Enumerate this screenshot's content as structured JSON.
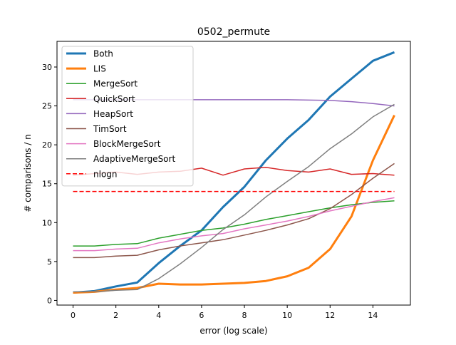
{
  "chart_data": {
    "type": "line",
    "title": "0502_permute",
    "xlabel": "error (log scale)",
    "ylabel": "# comparisons / n",
    "xlim": [
      -0.75,
      15.75
    ],
    "ylim": [
      -0.6,
      33.3
    ],
    "x_ticks": [
      0,
      2,
      4,
      6,
      8,
      10,
      12,
      14
    ],
    "y_ticks": [
      0,
      5,
      10,
      15,
      20,
      25,
      30
    ],
    "grid": false,
    "legend_position": "upper-left",
    "x": [
      0,
      1,
      2,
      3,
      4,
      5,
      6,
      7,
      8,
      9,
      10,
      11,
      12,
      13,
      14,
      15
    ],
    "series": [
      {
        "name": "Both",
        "color": "#1f77b4",
        "width": 3,
        "dash": "solid",
        "values": [
          1.0,
          1.2,
          1.8,
          2.3,
          4.8,
          7.0,
          9.0,
          12.0,
          14.6,
          18.0,
          20.8,
          23.2,
          26.2,
          28.5,
          30.8,
          31.9
        ]
      },
      {
        "name": "LIS",
        "color": "#ff7f0e",
        "width": 3,
        "dash": "solid",
        "values": [
          1.0,
          1.1,
          1.4,
          1.6,
          2.15,
          2.05,
          2.05,
          2.15,
          2.25,
          2.5,
          3.1,
          4.2,
          6.6,
          10.8,
          18.0,
          23.8
        ]
      },
      {
        "name": "MergeSort",
        "color": "#2ca02c",
        "width": 1.5,
        "dash": "solid",
        "values": [
          7.0,
          7.0,
          7.2,
          7.3,
          8.0,
          8.5,
          9.0,
          9.3,
          9.8,
          10.4,
          10.9,
          11.4,
          11.9,
          12.3,
          12.6,
          12.8
        ]
      },
      {
        "name": "QuickSort",
        "color": "#d62728",
        "width": 1.5,
        "dash": "solid",
        "values": [
          16.1,
          16.3,
          16.5,
          16.2,
          16.5,
          16.6,
          17.0,
          16.1,
          16.9,
          17.1,
          16.7,
          16.5,
          16.9,
          16.2,
          16.3,
          16.1
        ]
      },
      {
        "name": "HeapSort",
        "color": "#9467bd",
        "width": 1.5,
        "dash": "solid",
        "values": [
          25.8,
          25.8,
          25.8,
          25.8,
          25.8,
          25.8,
          25.8,
          25.8,
          25.8,
          25.8,
          25.8,
          25.75,
          25.7,
          25.55,
          25.3,
          25.0
        ]
      },
      {
        "name": "TimSort",
        "color": "#8c564b",
        "width": 1.5,
        "dash": "solid",
        "values": [
          5.5,
          5.5,
          5.7,
          5.8,
          6.5,
          7.0,
          7.4,
          7.8,
          8.4,
          9.0,
          9.7,
          10.5,
          11.8,
          13.6,
          15.7,
          17.6
        ]
      },
      {
        "name": "BlockMergeSort",
        "color": "#e377c2",
        "width": 1.5,
        "dash": "solid",
        "values": [
          6.4,
          6.4,
          6.6,
          6.7,
          7.4,
          7.9,
          8.3,
          8.6,
          9.2,
          9.7,
          10.2,
          10.8,
          11.5,
          12.1,
          12.7,
          13.2
        ]
      },
      {
        "name": "AdaptiveMergeSort",
        "color": "#7f7f7f",
        "width": 1.5,
        "dash": "solid",
        "values": [
          1.1,
          1.1,
          1.3,
          1.4,
          2.8,
          4.7,
          6.8,
          9.1,
          11.0,
          13.3,
          15.3,
          17.2,
          19.5,
          21.4,
          23.6,
          25.2
        ]
      },
      {
        "name": "nlogn",
        "color": "#ff0000",
        "width": 1.5,
        "dash": "dashed",
        "values": [
          14.0,
          14.0,
          14.0,
          14.0,
          14.0,
          14.0,
          14.0,
          14.0,
          14.0,
          14.0,
          14.0,
          14.0,
          14.0,
          14.0,
          14.0,
          14.0
        ]
      }
    ]
  }
}
